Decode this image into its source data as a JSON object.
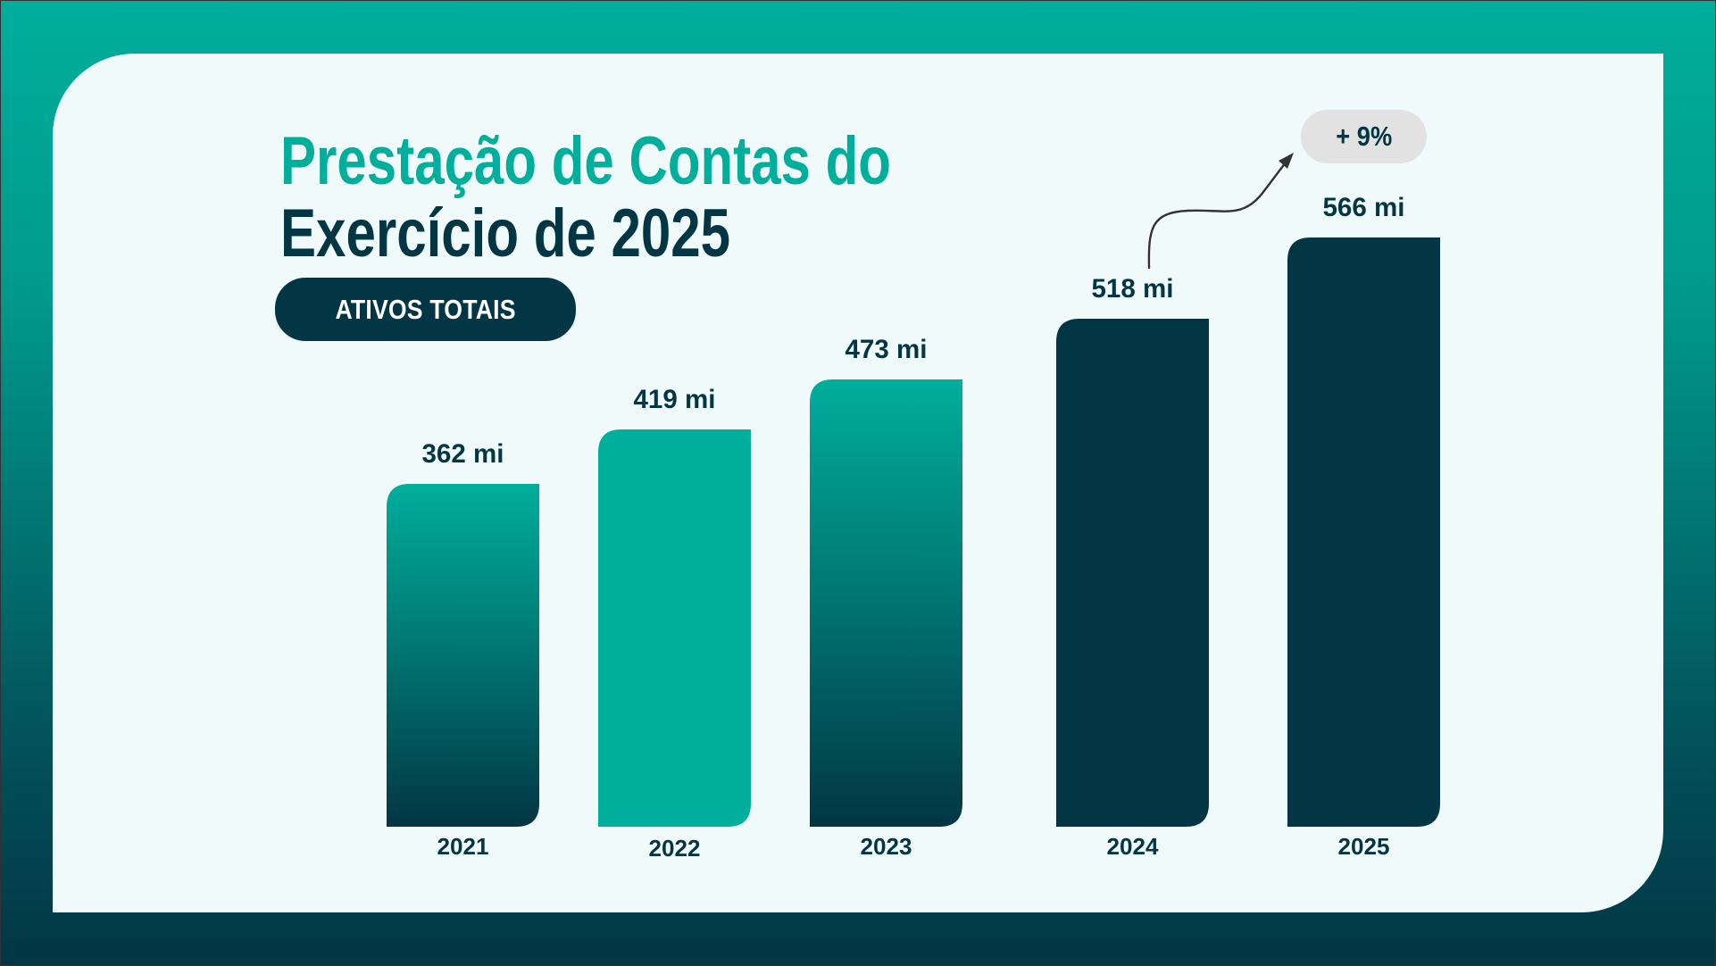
{
  "header": {
    "title_line1": "Prestação de Contas do",
    "title_line2": "Exercício de 2025",
    "section_label": "ATIVOS TOTAIS"
  },
  "annotation": {
    "growth_label": "+ 9%",
    "arrow_icon": "curved-arrow-up-right-icon"
  },
  "colors": {
    "teal": "#00ae9c",
    "dark": "#023644",
    "panel": "#f1fafa",
    "pill_grey": "#e2e2e2"
  },
  "chart_data": {
    "type": "bar",
    "title": "ATIVOS TOTAIS",
    "xlabel": "",
    "ylabel": "",
    "unit": "mi",
    "categories": [
      "2021",
      "2022",
      "2023",
      "2024",
      "2025"
    ],
    "values": [
      362,
      419,
      473,
      518,
      566
    ],
    "value_labels": [
      "362 mi",
      "419 mi",
      "473 mi",
      "518 mi",
      "566 mi"
    ],
    "bar_fills": [
      "gradient-teal-dark",
      "solid-teal",
      "gradient-teal-dark",
      "solid-dark",
      "solid-dark"
    ],
    "grid": false,
    "legend": "none",
    "annotations": [
      {
        "from": "2024",
        "to": "2025",
        "text": "+ 9%"
      }
    ]
  }
}
